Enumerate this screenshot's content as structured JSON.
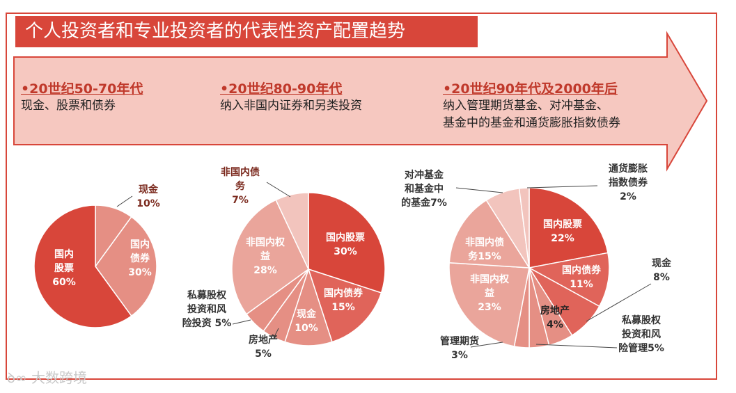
{
  "title": "个人投资者和专业投资者的代表性资产配置趋势",
  "eras": [
    {
      "period": "•20世纪50-70年代",
      "lines": [
        "现金、股票和债券"
      ]
    },
    {
      "period": "•20世纪80-90年代",
      "lines": [
        "纳入非国内证券和另类投资"
      ]
    },
    {
      "period": "•20世纪90年代及2000年后",
      "lines": [
        "纳入管理期货基金、对冲基金、",
        "基金中的基金和通货膨胀指数债券"
      ]
    }
  ],
  "watermark": "大数跨境",
  "colors": {
    "accent": "#d8463a",
    "arrow_fill": "#f6c8c0",
    "slice_dark": "#d8463a",
    "slice_mid": "#e58f84",
    "slice_light": "#f2c4bd"
  },
  "chart_data": [
    {
      "type": "pie",
      "title": "",
      "slices": [
        {
          "label": "现金\n10%",
          "value": 10,
          "color": "#e58f84"
        },
        {
          "label": "国内\n债券\n30%",
          "value": 30,
          "color": "#e58f84"
        },
        {
          "label": "国内\n股票\n60%",
          "value": 60,
          "color": "#d8463a"
        }
      ]
    },
    {
      "type": "pie",
      "title": "",
      "slices": [
        {
          "label": "国内股票\n30%",
          "value": 30,
          "color": "#d8463a"
        },
        {
          "label": "国内债券\n15%",
          "value": 15,
          "color": "#e0645a"
        },
        {
          "label": "现金\n10%",
          "value": 10,
          "color": "#e58f84"
        },
        {
          "label": "房地产\n5%",
          "value": 5,
          "color": "#e58f84"
        },
        {
          "label": "私募股权\n投资和风\n险投资 5%",
          "value": 5,
          "color": "#e58f84"
        },
        {
          "label": "非国内权\n益\n28%",
          "value": 28,
          "color": "#eaa59b"
        },
        {
          "label": "非国内债\n务\n7%",
          "value": 7,
          "color": "#f2c4bd"
        }
      ]
    },
    {
      "type": "pie",
      "title": "",
      "slices": [
        {
          "label": "国内股票\n22%",
          "value": 22,
          "color": "#d8463a"
        },
        {
          "label": "国内债券\n11%",
          "value": 11,
          "color": "#e0645a"
        },
        {
          "label": "现金\n8%",
          "value": 8,
          "color": "#e0645a"
        },
        {
          "label": "私募股权\n投资和风\n险管理5%",
          "value": 5,
          "color": "#e58f84"
        },
        {
          "label": "房地产\n4%",
          "value": 4,
          "color": "#e58f84"
        },
        {
          "label": "管理期货\n3%",
          "value": 3,
          "color": "#e58f84"
        },
        {
          "label": "非国内权\n益\n23%",
          "value": 23,
          "color": "#eaa59b"
        },
        {
          "label": "非国内债\n务15%",
          "value": 15,
          "color": "#eaa59b"
        },
        {
          "label": "对冲基金\n和基金中\n的基金7%",
          "value": 7,
          "color": "#f2c4bd"
        },
        {
          "label": "通货膨胀\n指数债券\n2%",
          "value": 2,
          "color": "#f2c4bd"
        }
      ]
    }
  ]
}
